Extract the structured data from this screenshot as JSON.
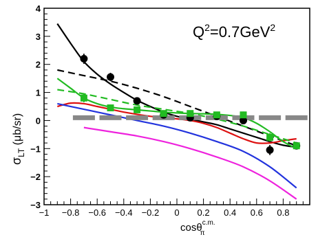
{
  "chart_data": {
    "type": "scatter",
    "title": "",
    "annotation": {
      "base": "Q",
      "sup1": "2",
      "mid": "=0.7GeV",
      "sup2": "2"
    },
    "ylabel": {
      "main": "σ",
      "sub": "LT",
      "unit": " (μb/sr)"
    },
    "xlabel": {
      "main": "cosθ",
      "sub": "π",
      "sup": "c.m."
    },
    "xlim": [
      -1,
      1
    ],
    "ylim": [
      -3,
      4
    ],
    "xticks": [
      -1,
      -0.8,
      -0.6,
      -0.4,
      -0.2,
      0,
      0.2,
      0.4,
      0.6,
      0.8
    ],
    "xtick_labels": [
      "−1",
      "−0.8",
      "−0.6",
      "−0.4",
      "−0.2",
      "0",
      "0.2",
      "0.4",
      "0.6",
      "0.8"
    ],
    "yticks": [
      -3,
      -2,
      -1,
      0,
      1,
      2,
      3,
      4
    ],
    "ytick_labels": [
      "−3",
      "−2",
      "−1",
      "0",
      "1",
      "2",
      "3",
      "4"
    ],
    "grid": false,
    "series": [
      {
        "marker": "circle",
        "color": "#000000",
        "x": [
          -0.7,
          -0.5,
          -0.3,
          -0.1,
          0.1,
          0.3,
          0.5,
          0.7,
          0.9
        ],
        "y": [
          2.2,
          1.55,
          0.7,
          0.2,
          0.1,
          0.15,
          0.0,
          -1.05,
          -0.9
        ],
        "err": [
          0.18,
          0.15,
          0.12,
          0.1,
          0.1,
          0.1,
          0.12,
          0.18,
          0.12
        ]
      },
      {
        "marker": "square",
        "color": "#22bb22",
        "x": [
          -0.7,
          -0.5,
          -0.3,
          -0.1,
          0.1,
          0.3,
          0.5,
          0.7,
          0.9
        ],
        "y": [
          0.8,
          0.45,
          0.38,
          0.25,
          0.25,
          0.2,
          0.2,
          -0.6,
          -0.9
        ],
        "err": [
          0.15,
          0.12,
          0.1,
          0.08,
          0.08,
          0.1,
          0.12,
          0.15,
          0.12
        ]
      }
    ],
    "systematic_band": {
      "color": "#888888",
      "x": [
        -0.7,
        -0.5,
        -0.3,
        -0.1,
        0.1,
        0.3,
        0.5,
        0.7,
        0.9
      ],
      "y": [
        0.1,
        0.1,
        0.1,
        0.1,
        0.1,
        0.1,
        0.1,
        0.1,
        0.1
      ]
    },
    "curves": [
      {
        "color": "#000000",
        "dash": "solid",
        "x": [
          -0.9,
          -0.8,
          -0.7,
          -0.6,
          -0.5,
          -0.4,
          -0.3,
          -0.2,
          -0.1,
          0,
          0.1,
          0.2,
          0.3,
          0.4,
          0.5,
          0.6,
          0.7,
          0.8,
          0.9
        ],
        "y": [
          3.45,
          2.75,
          2.1,
          1.65,
          1.3,
          1.0,
          0.72,
          0.5,
          0.3,
          0.15,
          0.05,
          -0.05,
          -0.15,
          -0.3,
          -0.45,
          -0.6,
          -0.75,
          -0.88,
          -0.95
        ]
      },
      {
        "color": "#000000",
        "dash": "dashed",
        "x": [
          -0.9,
          -0.7,
          -0.5,
          -0.3,
          -0.1,
          0.1,
          0.3,
          0.5,
          0.7,
          0.9
        ],
        "y": [
          1.8,
          1.6,
          1.4,
          1.15,
          0.85,
          0.5,
          0.15,
          -0.2,
          -0.55,
          -0.9
        ]
      },
      {
        "color": "#dd1111",
        "dash": "solid",
        "x": [
          -0.9,
          -0.8,
          -0.7,
          -0.6,
          -0.5,
          -0.4,
          -0.3,
          -0.2,
          -0.1,
          0,
          0.1,
          0.2,
          0.3,
          0.4,
          0.5,
          0.6,
          0.7,
          0.8,
          0.9
        ],
        "y": [
          0.5,
          0.62,
          0.6,
          0.5,
          0.4,
          0.3,
          0.22,
          0.15,
          0.1,
          0.06,
          0.0,
          -0.1,
          -0.25,
          -0.45,
          -0.65,
          -0.8,
          -0.8,
          -0.72,
          -0.65
        ]
      },
      {
        "color": "#22bb22",
        "dash": "solid",
        "x": [
          -0.9,
          -0.8,
          -0.7,
          -0.6,
          -0.5,
          -0.4,
          -0.3,
          -0.2,
          -0.1,
          0,
          0.1,
          0.2,
          0.3,
          0.4,
          0.5,
          0.6,
          0.7,
          0.8,
          0.9
        ],
        "y": [
          1.5,
          1.15,
          0.8,
          0.6,
          0.48,
          0.42,
          0.38,
          0.34,
          0.3,
          0.27,
          0.25,
          0.24,
          0.22,
          0.18,
          0.1,
          -0.1,
          -0.4,
          -0.75,
          -1.0
        ]
      },
      {
        "color": "#22bb22",
        "dash": "dashed",
        "x": [
          -0.9,
          -0.7,
          -0.5,
          -0.3,
          -0.1,
          0.1,
          0.3,
          0.5,
          0.7,
          0.9
        ],
        "y": [
          1.1,
          0.95,
          0.75,
          0.55,
          0.4,
          0.25,
          0.05,
          -0.2,
          -0.5,
          -0.8
        ]
      },
      {
        "color": "#2233dd",
        "dash": "solid",
        "x": [
          -0.9,
          -0.7,
          -0.5,
          -0.3,
          -0.1,
          0.1,
          0.3,
          0.5,
          0.7,
          0.9
        ],
        "y": [
          0.6,
          0.4,
          0.2,
          0.0,
          -0.2,
          -0.45,
          -0.75,
          -1.1,
          -1.65,
          -2.4
        ]
      },
      {
        "color": "#ee22dd",
        "dash": "solid",
        "x": [
          -0.7,
          -0.5,
          -0.3,
          -0.1,
          0.1,
          0.3,
          0.5,
          0.7,
          0.9
        ],
        "y": [
          -0.25,
          -0.4,
          -0.55,
          -0.75,
          -1.0,
          -1.3,
          -1.65,
          -2.15,
          -2.8
        ]
      }
    ]
  }
}
